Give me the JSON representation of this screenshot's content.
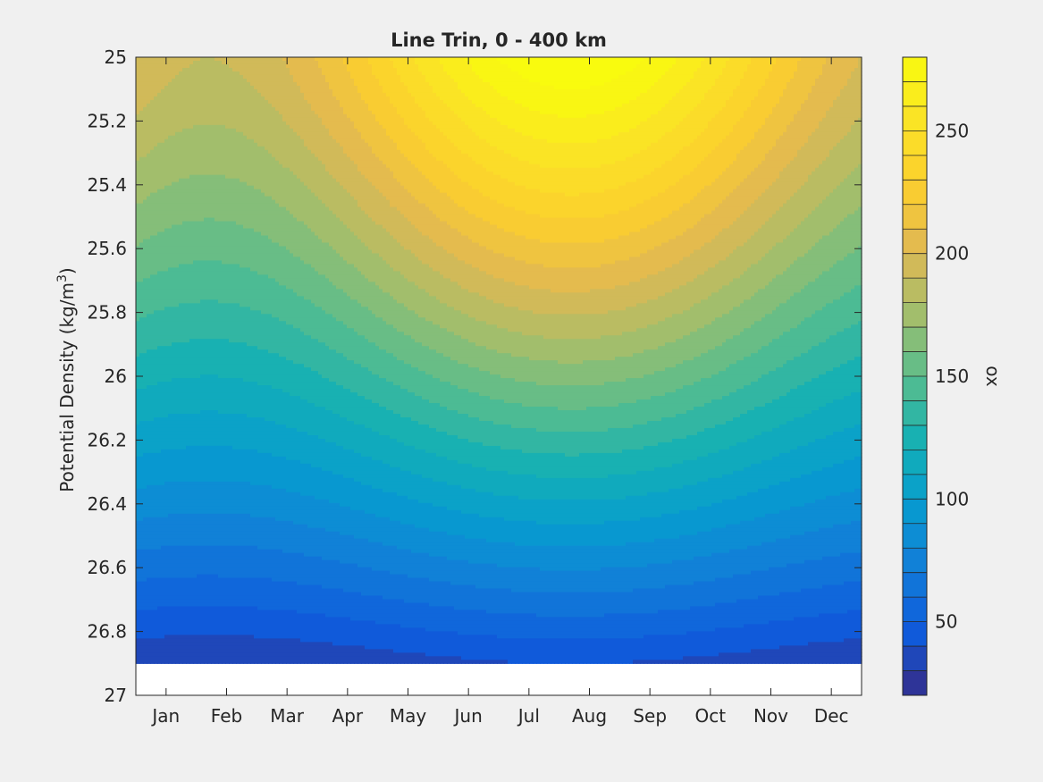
{
  "chart_data": {
    "type": "contour",
    "title": "Line Trin, 0 - 400 km",
    "xlabel": "",
    "ylabel": "Potential Density (kg/m",
    "ylabel_superscript": "3",
    "ylabel_suffix": ")",
    "x_tick_labels": [
      "Jan",
      "Feb",
      "Mar",
      "Apr",
      "May",
      "Jun",
      "Jul",
      "Aug",
      "Sep",
      "Oct",
      "Nov",
      "Dec"
    ],
    "xlim_months": [
      0.5,
      12.5
    ],
    "y_tick_labels": [
      "25",
      "25.2",
      "25.4",
      "25.6",
      "25.8",
      "26",
      "26.2",
      "26.4",
      "26.6",
      "26.8",
      "27"
    ],
    "ylim": [
      25,
      27
    ],
    "y_reversed": true,
    "data_bottom_density": 26.9,
    "colorbar": {
      "label": "ox",
      "range": [
        20,
        280
      ],
      "level_step": 10,
      "tick_labels": [
        "50",
        "100",
        "150",
        "200",
        "250"
      ]
    },
    "sample_values": [
      {
        "month": "Jan",
        "density": 25.0,
        "ox": 225
      },
      {
        "month": "Jan",
        "density": 25.6,
        "ox": 180
      },
      {
        "month": "Jan",
        "density": 26.0,
        "ox": 150
      },
      {
        "month": "Jan",
        "density": 26.6,
        "ox": 70
      },
      {
        "month": "Apr",
        "density": 25.0,
        "ox": 220
      },
      {
        "month": "Apr",
        "density": 26.0,
        "ox": 150
      },
      {
        "month": "Apr",
        "density": 26.8,
        "ox": 40
      },
      {
        "month": "Jul",
        "density": 25.0,
        "ox": 265
      },
      {
        "month": "Jul",
        "density": 25.6,
        "ox": 220
      },
      {
        "month": "Jul",
        "density": 26.2,
        "ox": 150
      },
      {
        "month": "Jul",
        "density": 26.8,
        "ox": 45
      },
      {
        "month": "Oct",
        "density": 25.0,
        "ox": 240
      },
      {
        "month": "Oct",
        "density": 26.0,
        "ox": 160
      },
      {
        "month": "Dec",
        "density": 25.0,
        "ox": 225
      }
    ]
  }
}
